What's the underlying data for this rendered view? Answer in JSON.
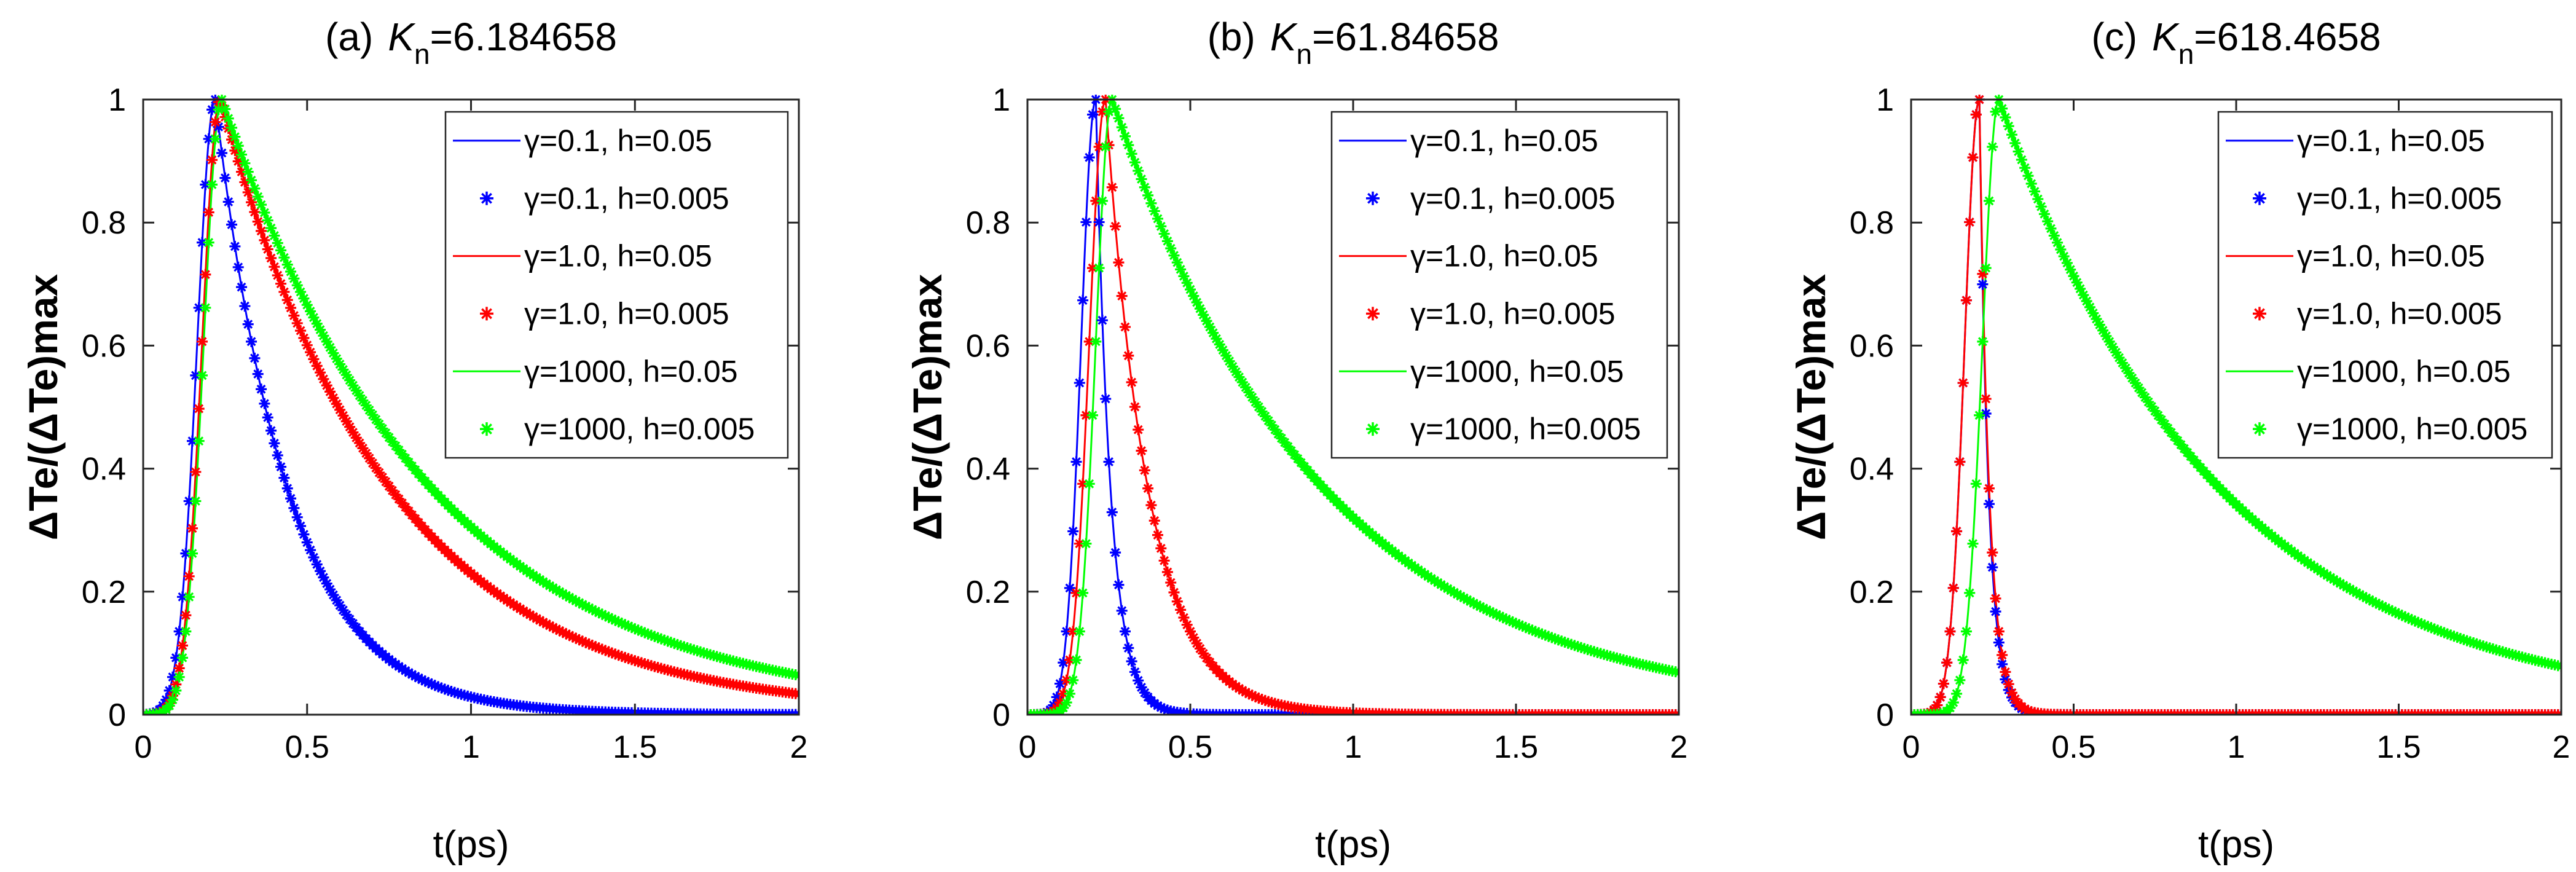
{
  "chart_data": [
    {
      "type": "line",
      "title_prefix": "(a)",
      "title_symbol": "K",
      "title_sub": "n",
      "title_value": "=6.184658",
      "xlabel": "t(ps)",
      "ylabel": "ΔTe/(ΔTe)max",
      "xlim": [
        0,
        2
      ],
      "ylim": [
        0,
        1
      ],
      "xticks": [
        "0",
        "0.5",
        "1",
        "1.5",
        "2"
      ],
      "xtick_values": [
        0,
        0.5,
        1,
        1.5,
        2
      ],
      "yticks": [
        "0",
        "0.2",
        "0.4",
        "0.6",
        "0.8",
        "1"
      ],
      "ytick_values": [
        0,
        0.2,
        0.4,
        0.6,
        0.8,
        1
      ],
      "legend_position": "top-right",
      "series": [
        {
          "name": "γ=0.1, h=0.05",
          "style": "line",
          "color": "#0000ff",
          "peak_t": 0.22,
          "rise_sigma": 0.055,
          "decay_tau": 0.22
        },
        {
          "name": "γ=0.1, h=0.005",
          "style": "star",
          "color": "#0000ff",
          "peak_t": 0.22,
          "rise_sigma": 0.055,
          "decay_tau": 0.22
        },
        {
          "name": "γ=1.0, h=0.05",
          "style": "line",
          "color": "#ff0000",
          "peak_t": 0.235,
          "rise_sigma": 0.055,
          "decay_tau": 0.52
        },
        {
          "name": "γ=1.0, h=0.005",
          "style": "star",
          "color": "#ff0000",
          "peak_t": 0.235,
          "rise_sigma": 0.055,
          "decay_tau": 0.52
        },
        {
          "name": "γ=1000, h=0.05",
          "style": "line",
          "color": "#00ff00",
          "peak_t": 0.24,
          "rise_sigma": 0.055,
          "decay_tau": 0.64
        },
        {
          "name": "γ=1000, h=0.005",
          "style": "star",
          "color": "#00ff00",
          "peak_t": 0.24,
          "rise_sigma": 0.055,
          "decay_tau": 0.64
        }
      ]
    },
    {
      "type": "line",
      "title_prefix": "(b)",
      "title_symbol": "K",
      "title_sub": "n",
      "title_value": "=61.84658",
      "xlabel": "t(ps)",
      "ylabel": "ΔTe/(ΔTe)max",
      "xlim": [
        0,
        2
      ],
      "ylim": [
        0,
        1
      ],
      "xticks": [
        "0",
        "0.5",
        "1",
        "1.5",
        "2"
      ],
      "xtick_values": [
        0,
        0.5,
        1,
        1.5,
        2
      ],
      "yticks": [
        "0",
        "0.2",
        "0.4",
        "0.6",
        "0.8",
        "1"
      ],
      "ytick_values": [
        0,
        0.2,
        0.4,
        0.6,
        0.8,
        1
      ],
      "legend_position": "top-right",
      "series": [
        {
          "name": "γ=0.1, h=0.05",
          "style": "line",
          "color": "#0000ff",
          "peak_t": 0.21,
          "rise_sigma": 0.045,
          "decay_tau": 0.045
        },
        {
          "name": "γ=0.1, h=0.005",
          "style": "star",
          "color": "#0000ff",
          "peak_t": 0.21,
          "rise_sigma": 0.045,
          "decay_tau": 0.045
        },
        {
          "name": "γ=1.0, h=0.05",
          "style": "line",
          "color": "#ff0000",
          "peak_t": 0.24,
          "rise_sigma": 0.05,
          "decay_tau": 0.13
        },
        {
          "name": "γ=1.0, h=0.005",
          "style": "star",
          "color": "#ff0000",
          "peak_t": 0.24,
          "rise_sigma": 0.05,
          "decay_tau": 0.13
        },
        {
          "name": "γ=1000, h=0.05",
          "style": "line",
          "color": "#00ff00",
          "peak_t": 0.26,
          "rise_sigma": 0.05,
          "decay_tau": 0.65
        },
        {
          "name": "γ=1000, h=0.005",
          "style": "star",
          "color": "#00ff00",
          "peak_t": 0.26,
          "rise_sigma": 0.05,
          "decay_tau": 0.65
        }
      ]
    },
    {
      "type": "line",
      "title_prefix": "(c)",
      "title_symbol": "K",
      "title_sub": "n",
      "title_value": "=618.4658",
      "xlabel": "t(ps)",
      "ylabel": "ΔTe/(ΔTe)max",
      "xlim": [
        0,
        2
      ],
      "ylim": [
        0,
        1
      ],
      "xticks": [
        "0",
        "0.5",
        "1",
        "1.5",
        "2"
      ],
      "xtick_values": [
        0,
        0.5,
        1,
        1.5,
        2
      ],
      "yticks": [
        "0",
        "0.2",
        "0.4",
        "0.6",
        "0.8",
        "1"
      ],
      "ytick_values": [
        0,
        0.2,
        0.4,
        0.6,
        0.8,
        1
      ],
      "legend_position": "top-right",
      "series": [
        {
          "name": "γ=0.1, h=0.05",
          "style": "line",
          "color": "#0000ff",
          "peak_t": 0.21,
          "rise_sigma": 0.045,
          "decay_tau": 0.028
        },
        {
          "name": "γ=0.1, h=0.005",
          "style": "star",
          "color": "#0000ff",
          "peak_t": 0.21,
          "rise_sigma": 0.045,
          "decay_tau": 0.028
        },
        {
          "name": "γ=1.0, h=0.05",
          "style": "line",
          "color": "#ff0000",
          "peak_t": 0.21,
          "rise_sigma": 0.045,
          "decay_tau": 0.03
        },
        {
          "name": "γ=1.0, h=0.005",
          "style": "star",
          "color": "#ff0000",
          "peak_t": 0.21,
          "rise_sigma": 0.045,
          "decay_tau": 0.03
        },
        {
          "name": "γ=1000, h=0.05",
          "style": "line",
          "color": "#00ff00",
          "peak_t": 0.27,
          "rise_sigma": 0.05,
          "decay_tau": 0.68
        },
        {
          "name": "γ=1000, h=0.005",
          "style": "star",
          "color": "#00ff00",
          "peak_t": 0.27,
          "rise_sigma": 0.05,
          "decay_tau": 0.68
        }
      ]
    }
  ]
}
